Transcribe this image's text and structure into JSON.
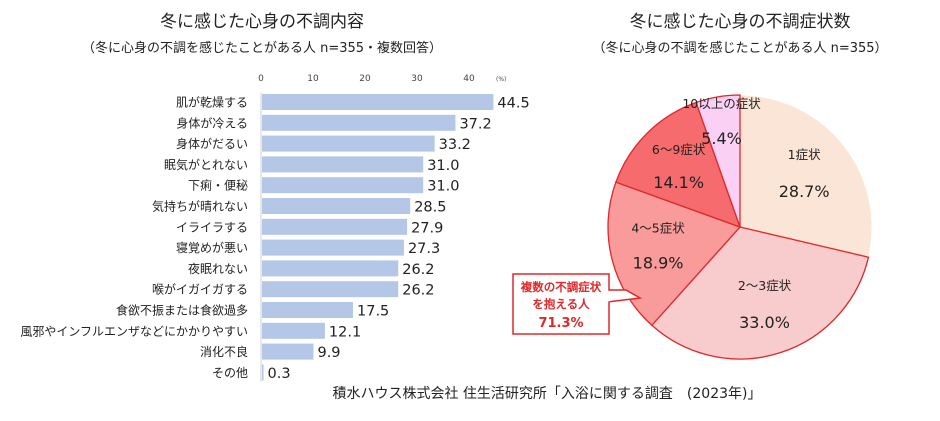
{
  "chart_data": [
    {
      "type": "bar",
      "orientation": "horizontal",
      "title": "冬に感じた心身の不調内容",
      "subtitle": "（冬に心身の不調を感じたことがある人 n=355・複数回答）",
      "unit_label": "(%)",
      "xlim": [
        0,
        45
      ],
      "ticks": [
        0,
        10,
        20,
        30,
        40
      ],
      "grid": false,
      "bar_color": "#b4c7e7",
      "categories": [
        "肌が乾燥する",
        "身体が冷える",
        "身体がだるい",
        "眠気がとれない",
        "下痢・便秘",
        "気持ちが晴れない",
        "イライラする",
        "寝覚めが悪い",
        "夜眠れない",
        "喉がイガイガする",
        "食欲不振または食欲過多",
        "風邪やインフルエンザなどにかかりやすい",
        "消化不良",
        "その他"
      ],
      "values": [
        44.5,
        37.2,
        33.2,
        31.0,
        31.0,
        28.5,
        27.9,
        27.3,
        26.2,
        26.2,
        17.5,
        12.1,
        9.9,
        0.3
      ],
      "value_labels": [
        "44.5",
        "37.2",
        "33.2",
        "31.0",
        "31.0",
        "28.5",
        "27.9",
        "27.3",
        "26.2",
        "26.2",
        "17.5",
        "12.1",
        "9.9",
        "0.3"
      ]
    },
    {
      "type": "pie",
      "title": "冬に感じた心身の不調症状数",
      "subtitle": "（冬に心身の不調を感じたことがある人 n=355）",
      "slices": [
        {
          "label": "1症状",
          "value": 28.7,
          "value_label": "28.7%",
          "color": "#fbe5d6"
        },
        {
          "label": "2～3症状",
          "value": 33.0,
          "value_label": "33.0%",
          "color": "#f8cbcc"
        },
        {
          "label": "4～5症状",
          "value": 18.9,
          "value_label": "18.9%",
          "color": "#f99a9b"
        },
        {
          "label": "6～9症状",
          "value": 14.1,
          "value_label": "14.1%",
          "color": "#f56b6e"
        },
        {
          "label": "10以上の症状",
          "value": 5.4,
          "value_label": "5.4%",
          "color": "#fbd0f5"
        }
      ],
      "highlight": {
        "line1": "複数の不調症状",
        "line2": "を抱える人",
        "value": "71.3%",
        "color": "#e0282a"
      }
    }
  ],
  "source": "積水ハウス株式会社 住生活研究所「入浴に関する調査　(2023年)」"
}
